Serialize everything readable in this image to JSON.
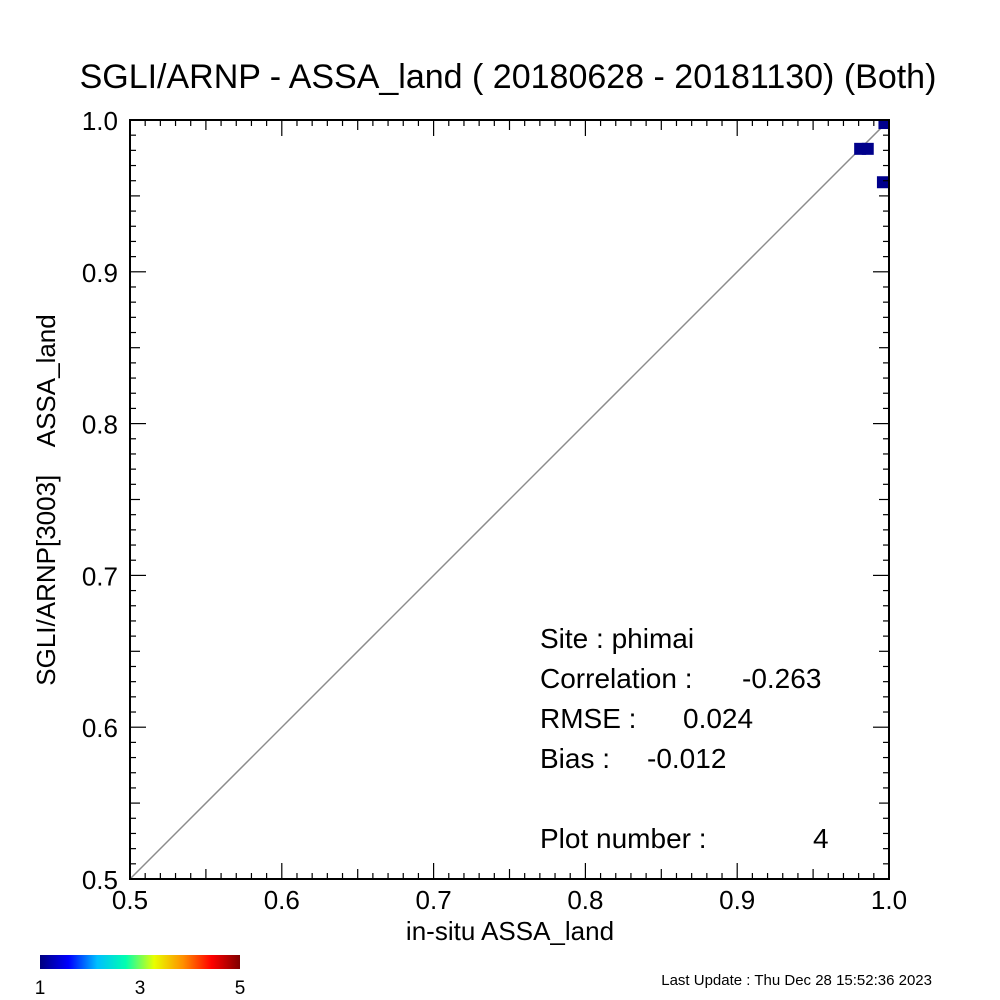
{
  "chart_data": {
    "type": "scatter",
    "title": "SGLI/ARNP - ASSA_land ( 20180628 - 20181130) (Both)",
    "xlabel": "in-situ ASSA_land",
    "ylabel": "SGLI/ARNP[3003]    ASSA_land",
    "xlim": [
      0.5,
      1.0
    ],
    "ylim": [
      0.5,
      1.0
    ],
    "xticks": [
      "0.5",
      "0.6",
      "0.7",
      "0.8",
      "0.9",
      "1.0"
    ],
    "yticks": [
      "0.5",
      "0.6",
      "0.7",
      "0.8",
      "0.9",
      "1.0"
    ],
    "xtick_values": [
      0.5,
      0.6,
      0.7,
      0.8,
      0.9,
      1.0
    ],
    "ytick_values": [
      0.5,
      0.6,
      0.7,
      0.8,
      0.9,
      1.0
    ],
    "reference_line": "1:1",
    "points": [
      {
        "x": 0.981,
        "y": 0.981,
        "count": 1
      },
      {
        "x": 0.986,
        "y": 0.981,
        "count": 1
      },
      {
        "x": 0.997,
        "y": 0.998,
        "count": 1
      },
      {
        "x": 0.996,
        "y": 0.959,
        "count": 1
      }
    ],
    "colorbar": {
      "colors": [
        "#00007f",
        "#0000ff",
        "#00bfff",
        "#00ffb0",
        "#e8ff00",
        "#ff9000",
        "#ff0000",
        "#7f0000"
      ],
      "labels": [
        "1",
        "3",
        "5"
      ],
      "min": 1,
      "max": 5
    },
    "point_color": "#00008b",
    "grid": false
  },
  "stats": {
    "site": "Site : phimai",
    "correlation_label": "Correlation :",
    "correlation_value": "-0.263",
    "rmse_label": "RMSE :",
    "rmse_value": "0.024",
    "bias_label": "Bias :",
    "bias_value": "-0.012",
    "plot_number_label": "Plot number :",
    "plot_number_value": "4"
  },
  "footer": {
    "last_update": "Last Update : Thu Dec 28 15:52:36 2023"
  }
}
